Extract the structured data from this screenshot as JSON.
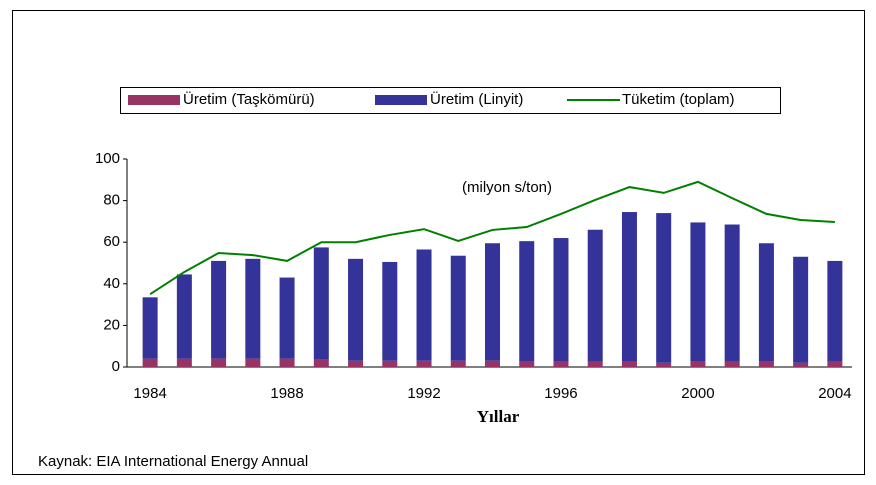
{
  "chart_data": {
    "type": "bar",
    "annotation": "(milyon s/ton)",
    "x_label": "Yıllar",
    "source": "Kaynak: EIA International Energy Annual",
    "legend": "top",
    "grid": false,
    "categories": [
      "1984",
      null,
      null,
      null,
      "1988",
      null,
      null,
      null,
      "1992",
      null,
      null,
      null,
      "1996",
      null,
      null,
      null,
      "2000",
      null,
      null,
      null,
      "2004"
    ],
    "series": [
      {
        "name": "Üretim (Taşkömürü)",
        "type": "bar",
        "color": "#993366",
        "values": [
          4,
          4,
          4,
          4,
          4,
          3.5,
          3,
          3,
          3,
          3,
          3,
          2.5,
          2.5,
          2.5,
          2.5,
          2,
          2.5,
          2.5,
          2.5,
          2,
          2.5
        ]
      },
      {
        "name": "Üretim (Linyit)",
        "type": "bar",
        "color": "#333399",
        "values": [
          29.5,
          40.5,
          47,
          48,
          39,
          54,
          49,
          47.5,
          53.5,
          50.5,
          56.5,
          58,
          59.5,
          63.5,
          72,
          72,
          67,
          66,
          57,
          51,
          48.5
        ]
      },
      {
        "name": "Tüketim (toplam)",
        "type": "line",
        "color": "#008000",
        "values": [
          35,
          45.7,
          54.8,
          53.8,
          51,
          60,
          60,
          63.5,
          66.3,
          60.6,
          65.9,
          67.3,
          73.6,
          80.3,
          86.5,
          83.7,
          89,
          81.2,
          73.6,
          70.7,
          69.7
        ]
      }
    ],
    "ylim": [
      0,
      100
    ],
    "yticks": [
      0,
      20,
      40,
      60,
      80,
      100
    ]
  }
}
